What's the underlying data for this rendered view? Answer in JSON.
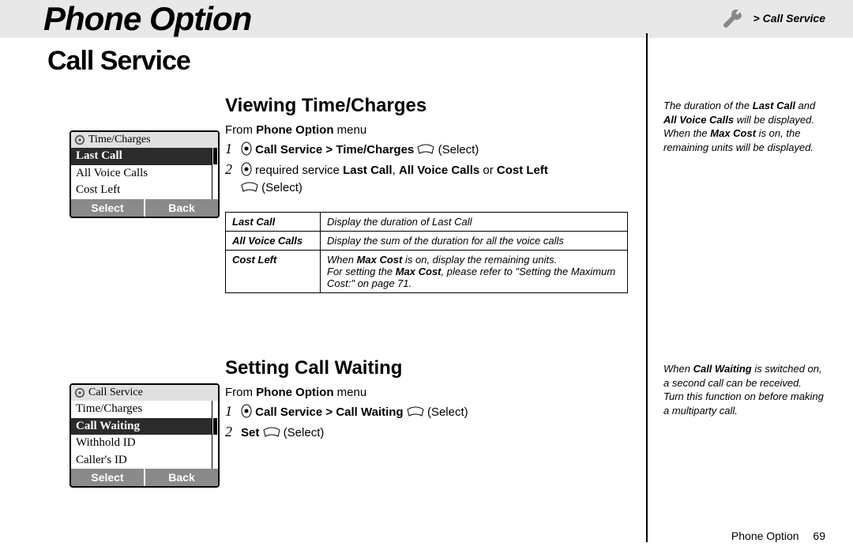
{
  "header": {
    "chapter": "Phone Option",
    "breadcrumb": "> Call Service"
  },
  "section_title": "Call Service",
  "viewing": {
    "heading": "Viewing Time/Charges",
    "from_prefix": "From ",
    "from_bold": "Phone Option",
    "from_suffix": " menu",
    "step1_bold": "Call Service > Time/Charges",
    "step1_suffix": " (Select)",
    "step2_prefix": "required service ",
    "step2_b1": "Last Call",
    "step2_sep1": ", ",
    "step2_b2": "All Voice Calls",
    "step2_sep2": " or ",
    "step2_b3": "Cost Left",
    "step2_line2": "(Select)"
  },
  "table": {
    "r1_label": "Last Call",
    "r1_desc": "Display the duration of Last Call",
    "r2_label": "All Voice Calls",
    "r2_desc": "Display the sum of the duration for all the voice calls",
    "r3_label": "Cost Left",
    "r3_line1_pre": "When ",
    "r3_line1_b": "Max Cost",
    "r3_line1_post": " is on, display the remaining units.",
    "r3_line2_pre": "For setting the ",
    "r3_line2_b": "Max Cost",
    "r3_line2_post": ", please refer to \"Setting the Maximum Cost:\" on page 71."
  },
  "waiting": {
    "heading": "Setting Call Waiting",
    "from_prefix": "From ",
    "from_bold": "Phone Option",
    "from_suffix": " menu",
    "step1_bold": "Call Service > Call Waiting",
    "step1_suffix": " (Select)",
    "step2_bold": "Set",
    "step2_suffix": " (Select)"
  },
  "note1": {
    "pre": "The duration of the ",
    "b1": "Last Call",
    "mid": " and ",
    "b2": "All Voice Calls",
    "post1": " will be displayed. When the ",
    "b3": "Max Cost",
    "post2": " is on, the remaining units will be displayed."
  },
  "note2": {
    "pre": "When ",
    "b1": "Call Waiting",
    "post1": " is switched on, a second call can be received.",
    "line2": "Turn this function on before making a multiparty call."
  },
  "footer": {
    "label": "Phone Option",
    "page": "69"
  },
  "screen1": {
    "title": "Time/Charges",
    "items": [
      "Last Call",
      "All Voice Calls",
      "Cost Left"
    ],
    "selected_index": 0,
    "left_key": "Select",
    "right_key": "Back"
  },
  "screen2": {
    "title": "Call Service",
    "items": [
      "Time/Charges",
      "Call Waiting",
      "Withhold ID",
      "Caller's ID"
    ],
    "selected_index": 1,
    "left_key": "Select",
    "right_key": "Back"
  }
}
